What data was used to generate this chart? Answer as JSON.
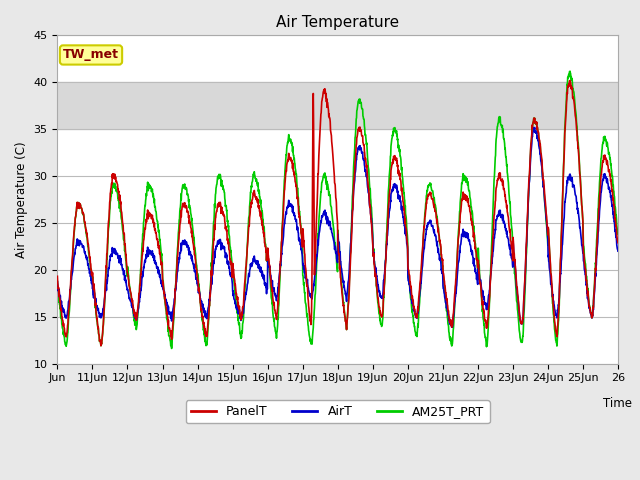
{
  "title": "Air Temperature",
  "ylabel": "Air Temperature (C)",
  "xlabel": "Time",
  "ylim": [
    10,
    45
  ],
  "xlim": [
    0,
    16
  ],
  "shade_ymin": 35,
  "shade_ymax": 40,
  "shade_color": "#d8d8d8",
  "bg_color": "#e8e8e8",
  "plot_bg_color": "#ffffff",
  "grid_color": "#bbbbbb",
  "xtick_labels": [
    "Jun",
    "11Jun",
    "12Jun",
    "13Jun",
    "14Jun",
    "15Jun",
    "16Jun",
    "17Jun",
    "18Jun",
    "19Jun",
    "20Jun",
    "21Jun",
    "22Jun",
    "23Jun",
    "24Jun",
    "25Jun",
    "26"
  ],
  "xtick_positions": [
    0,
    1,
    2,
    3,
    4,
    5,
    6,
    7,
    8,
    9,
    10,
    11,
    12,
    13,
    14,
    15,
    16
  ],
  "legend_labels": [
    "PanelT",
    "AirT",
    "AM25T_PRT"
  ],
  "legend_colors": [
    "#cc0000",
    "#0000cc",
    "#00cc00"
  ],
  "annotation_text": "TW_met",
  "annotation_color": "#880000",
  "annotation_bg": "#ffff99",
  "annotation_border": "#cccc00",
  "ytick_positions": [
    10,
    15,
    20,
    25,
    30,
    35,
    40,
    45
  ],
  "panel_color": "#cc0000",
  "air_color": "#0000cc",
  "am25_color": "#00cc00",
  "line_width": 1.2,
  "day_peaks_panel": [
    27,
    30,
    26,
    27,
    27,
    28,
    32,
    39,
    35,
    32,
    28,
    28,
    30,
    36,
    40,
    32
  ],
  "day_peaks_air": [
    23,
    22,
    22,
    23,
    23,
    21,
    27,
    26,
    33,
    29,
    25,
    24,
    26,
    35,
    30,
    30
  ],
  "day_peaks_am25": [
    27,
    29,
    29,
    29,
    30,
    30,
    34,
    30,
    38,
    35,
    29,
    30,
    36,
    36,
    41,
    34
  ],
  "day_mins_panel": [
    13,
    12,
    15,
    13,
    13,
    15,
    15,
    14,
    14,
    15,
    15,
    14,
    14,
    14,
    13,
    15
  ],
  "day_mins_air": [
    15,
    15,
    15,
    15,
    15,
    15,
    17,
    17,
    17,
    17,
    15,
    14,
    16,
    14,
    15,
    15
  ],
  "day_mins_am25": [
    12,
    12,
    14,
    12,
    12,
    13,
    13,
    12,
    14,
    14,
    13,
    12,
    12,
    12,
    12,
    15
  ]
}
